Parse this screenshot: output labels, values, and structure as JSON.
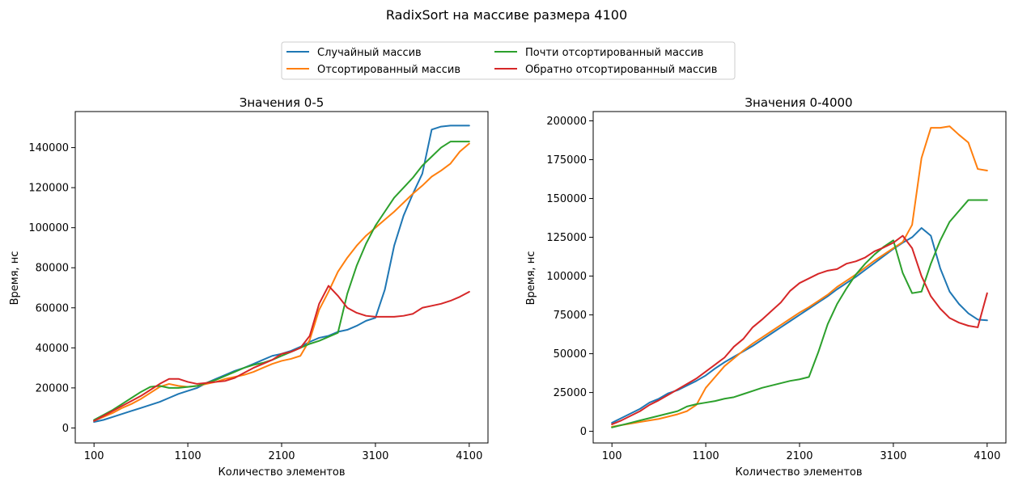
{
  "figure": {
    "suptitle": "RadixSort на массиве размера 4100"
  },
  "legend": {
    "placement": "top-center",
    "entries": [
      {
        "label": "Случайный массив",
        "color": "#1f77b4"
      },
      {
        "label": "Отсортированный массив",
        "color": "#ff7f0e"
      },
      {
        "label": "Почти отсортированный массив",
        "color": "#2ca02c"
      },
      {
        "label": "Обратно отсортированный массив",
        "color": "#d62728"
      }
    ]
  },
  "chart_data": [
    {
      "type": "line",
      "title": "Значения 0-5",
      "xlabel": "Количество элементов",
      "ylabel": "Время, нс",
      "xlim": [
        -100,
        4300
      ],
      "ylim": [
        -7500,
        158000
      ],
      "xticks": [
        100,
        1100,
        2100,
        3100,
        4100
      ],
      "yticks": [
        0,
        20000,
        40000,
        60000,
        80000,
        100000,
        120000,
        140000
      ],
      "x": [
        100,
        200,
        300,
        400,
        500,
        600,
        700,
        800,
        900,
        1000,
        1100,
        1200,
        1300,
        1400,
        1500,
        1600,
        1700,
        1800,
        1900,
        2000,
        2100,
        2200,
        2300,
        2400,
        2500,
        2600,
        2700,
        2800,
        2900,
        3000,
        3100,
        3200,
        3300,
        3400,
        3500,
        3600,
        3700,
        3800,
        3900,
        4000,
        4100
      ],
      "series": [
        {
          "name": "Случайный массив",
          "color": "#1f77b4",
          "values": [
            3000,
            4000,
            5500,
            7000,
            8500,
            10000,
            11500,
            13000,
            15000,
            17000,
            18500,
            20000,
            22500,
            24500,
            26500,
            28500,
            30000,
            32000,
            34000,
            36000,
            37000,
            38500,
            40500,
            43000,
            45000,
            46000,
            48000,
            49000,
            51000,
            53500,
            55000,
            69000,
            91000,
            106000,
            117000,
            127000,
            149000,
            150500,
            151000,
            151000,
            151000
          ]
        },
        {
          "name": "Отсортированный массив",
          "color": "#ff7f0e",
          "values": [
            3500,
            5500,
            7500,
            10000,
            12000,
            14500,
            17500,
            20500,
            22000,
            21000,
            20500,
            21000,
            22000,
            23000,
            24500,
            25500,
            26500,
            28000,
            30000,
            32000,
            33500,
            34500,
            36000,
            44000,
            59000,
            68000,
            78000,
            85000,
            91000,
            96000,
            100000,
            104000,
            108000,
            112500,
            117000,
            121000,
            125500,
            128500,
            132000,
            138000,
            142000
          ]
        },
        {
          "name": "Почти отсортированный массив",
          "color": "#2ca02c",
          "values": [
            4000,
            6500,
            9000,
            12000,
            15000,
            18000,
            20500,
            21000,
            20000,
            20000,
            20500,
            21000,
            22500,
            24000,
            26000,
            28000,
            30000,
            31500,
            32500,
            34000,
            36000,
            38000,
            40000,
            42000,
            43500,
            45500,
            47500,
            67000,
            81000,
            92000,
            101000,
            108000,
            115000,
            120000,
            125000,
            131000,
            135500,
            140000,
            143000,
            143000,
            143000
          ]
        },
        {
          "name": "Обратно отсортированный массив",
          "color": "#d62728",
          "values": [
            3500,
            6000,
            8500,
            11000,
            13500,
            16000,
            19000,
            22000,
            24500,
            24500,
            23000,
            22000,
            22500,
            23000,
            23500,
            25000,
            27500,
            30000,
            32000,
            34000,
            37000,
            38000,
            40000,
            46000,
            62000,
            71000,
            66000,
            60000,
            57500,
            56000,
            55500,
            55500,
            55500,
            56000,
            57000,
            60000,
            61000,
            62000,
            63500,
            65500,
            68000
          ]
        }
      ]
    },
    {
      "type": "line",
      "title": "Значения 0-4000",
      "xlabel": "Количество элементов",
      "ylabel": "Время, нс",
      "xlim": [
        -100,
        4300
      ],
      "ylim": [
        -7500,
        206000
      ],
      "xticks": [
        100,
        1100,
        2100,
        3100,
        4100
      ],
      "yticks": [
        0,
        25000,
        50000,
        75000,
        100000,
        125000,
        150000,
        175000,
        200000
      ],
      "x": [
        100,
        200,
        300,
        400,
        500,
        600,
        700,
        800,
        900,
        1000,
        1100,
        1200,
        1300,
        1400,
        1500,
        1600,
        1700,
        1800,
        1900,
        2000,
        2100,
        2200,
        2300,
        2400,
        2500,
        2600,
        2700,
        2800,
        2900,
        3000,
        3100,
        3200,
        3300,
        3400,
        3500,
        3600,
        3700,
        3800,
        3900,
        4000,
        4100
      ],
      "series": [
        {
          "name": "Случайный массив",
          "color": "#1f77b4",
          "values": [
            5500,
            8500,
            11500,
            14500,
            18500,
            21000,
            24500,
            26500,
            29500,
            32500,
            36000,
            40500,
            44500,
            48000,
            51500,
            55000,
            59000,
            63000,
            67000,
            71000,
            75000,
            79000,
            83000,
            87000,
            91500,
            95500,
            99500,
            104000,
            108500,
            113000,
            117500,
            121500,
            125000,
            131000,
            126000,
            105000,
            90000,
            82000,
            76000,
            72000,
            71500
          ]
        },
        {
          "name": "Отсортированный массив",
          "color": "#ff7f0e",
          "values": [
            3000,
            4000,
            5000,
            6000,
            7000,
            8000,
            9500,
            11000,
            13000,
            17000,
            28000,
            35000,
            42000,
            47000,
            52000,
            56500,
            60500,
            64500,
            68500,
            72500,
            76500,
            80000,
            84000,
            88000,
            93000,
            97000,
            101000,
            105500,
            110000,
            114000,
            118000,
            122000,
            133000,
            176000,
            195500,
            195500,
            196500,
            191000,
            186000,
            169000,
            168000
          ]
        },
        {
          "name": "Почти отсортированный массив",
          "color": "#2ca02c",
          "values": [
            2500,
            4000,
            5500,
            7000,
            8500,
            10000,
            11500,
            13000,
            16000,
            17500,
            18500,
            19500,
            21000,
            22000,
            24000,
            26000,
            28000,
            29500,
            31000,
            32500,
            33500,
            35000,
            51000,
            69000,
            82000,
            92000,
            101000,
            108000,
            114000,
            119000,
            123000,
            102000,
            89000,
            90000,
            108000,
            123000,
            135000,
            142000,
            149000,
            149000,
            149000
          ]
        },
        {
          "name": "Обратно отсортированный массив",
          "color": "#d62728",
          "values": [
            4500,
            7000,
            10000,
            13000,
            17000,
            20000,
            23500,
            27000,
            30500,
            34000,
            38500,
            43000,
            47500,
            54500,
            59500,
            67000,
            72000,
            77500,
            83000,
            90500,
            95500,
            98500,
            101500,
            103500,
            104500,
            108000,
            109500,
            112000,
            116000,
            118500,
            121500,
            126000,
            118000,
            100000,
            87000,
            79000,
            73000,
            70000,
            68000,
            67000,
            89000
          ]
        }
      ]
    }
  ]
}
